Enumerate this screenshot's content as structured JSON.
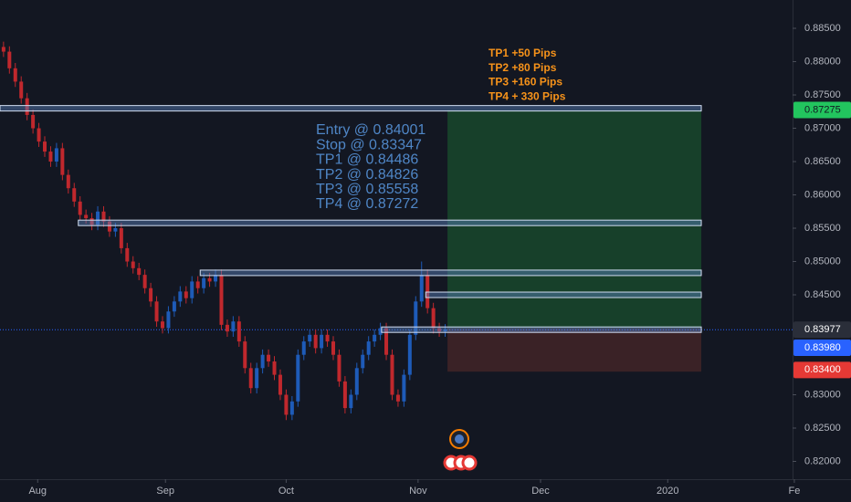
{
  "chart_data": {
    "type": "candlestick",
    "background": "#131722",
    "up_color": "#1e5bb8",
    "down_color": "#c0282d",
    "xlim": [
      -0.6,
      134
    ],
    "xticks": [
      {
        "value": 5.8,
        "label": "Aug"
      },
      {
        "value": 27.5,
        "label": "Sep"
      },
      {
        "value": 48,
        "label": "Oct"
      },
      {
        "value": 70.4,
        "label": "Nov"
      },
      {
        "value": 91.2,
        "label": "Dec"
      },
      {
        "value": 112.8,
        "label": "2020"
      },
      {
        "value": 134.3,
        "label": "Fe"
      }
    ],
    "ylim": [
      0.81733,
      0.88925
    ],
    "yticks": [
      {
        "value": 0.885,
        "label": "0.88500"
      },
      {
        "value": 0.88,
        "label": "0.88000"
      },
      {
        "value": 0.875,
        "label": "0.87500"
      },
      {
        "value": 0.87,
        "label": "0.87000"
      },
      {
        "value": 0.865,
        "label": "0.86500"
      },
      {
        "value": 0.86,
        "label": "0.86000"
      },
      {
        "value": 0.855,
        "label": "0.85500"
      },
      {
        "value": 0.85,
        "label": "0.85000"
      },
      {
        "value": 0.845,
        "label": "0.84500"
      },
      {
        "value": 0.83,
        "label": "0.83000"
      },
      {
        "value": 0.825,
        "label": "0.82500"
      },
      {
        "value": 0.82,
        "label": "0.82000"
      }
    ],
    "open": [
      0.8822,
      0.8815,
      0.879,
      0.877,
      0.8745,
      0.872,
      0.87,
      0.868,
      0.8665,
      0.865,
      0.867,
      0.863,
      0.861,
      0.859,
      0.857,
      0.8565,
      0.8555,
      0.8575,
      0.856,
      0.8545,
      0.855,
      0.852,
      0.85,
      0.849,
      0.848,
      0.846,
      0.844,
      0.841,
      0.84,
      0.8425,
      0.844,
      0.8455,
      0.8445,
      0.847,
      0.846,
      0.8475,
      0.847,
      0.848,
      0.8405,
      0.8395,
      0.841,
      0.838,
      0.834,
      0.831,
      0.834,
      0.836,
      0.835,
      0.833,
      0.83,
      0.827,
      0.829,
      0.836,
      0.838,
      0.839,
      0.837,
      0.839,
      0.838,
      0.836,
      0.832,
      0.828,
      0.83,
      0.834,
      0.836,
      0.838,
      0.839,
      0.84,
      0.836,
      0.83,
      0.829,
      0.833,
      0.839,
      0.844,
      0.848,
      0.843,
      0.84,
      0.8395
    ],
    "high": [
      0.883,
      0.8823,
      0.8798,
      0.8778,
      0.8753,
      0.8728,
      0.8708,
      0.8688,
      0.8673,
      0.8678,
      0.8678,
      0.8638,
      0.8618,
      0.8598,
      0.8578,
      0.8573,
      0.8583,
      0.8583,
      0.8568,
      0.8558,
      0.8558,
      0.8528,
      0.8508,
      0.8498,
      0.8488,
      0.8468,
      0.8448,
      0.8418,
      0.8433,
      0.8448,
      0.8463,
      0.8463,
      0.8478,
      0.8478,
      0.8483,
      0.8483,
      0.8488,
      0.8488,
      0.8413,
      0.8418,
      0.8418,
      0.8388,
      0.8348,
      0.8348,
      0.8368,
      0.8368,
      0.8358,
      0.8338,
      0.8308,
      0.8298,
      0.8368,
      0.8388,
      0.8398,
      0.8398,
      0.8398,
      0.8398,
      0.8388,
      0.8368,
      0.8328,
      0.8308,
      0.8348,
      0.8368,
      0.8388,
      0.8398,
      0.8408,
      0.8408,
      0.8368,
      0.8308,
      0.8338,
      0.8398,
      0.8448,
      0.85,
      0.8488,
      0.8438,
      0.8408,
      0.8406
    ],
    "low": [
      0.8807,
      0.8782,
      0.8762,
      0.8737,
      0.8712,
      0.8692,
      0.8672,
      0.8657,
      0.8642,
      0.8642,
      0.8622,
      0.8602,
      0.8582,
      0.8562,
      0.8557,
      0.8547,
      0.8547,
      0.8552,
      0.8537,
      0.8537,
      0.8512,
      0.8492,
      0.8482,
      0.8472,
      0.8452,
      0.8432,
      0.8402,
      0.8392,
      0.8392,
      0.8417,
      0.8432,
      0.8437,
      0.8437,
      0.8452,
      0.8452,
      0.8462,
      0.8462,
      0.8397,
      0.8387,
      0.8387,
      0.8372,
      0.8332,
      0.8302,
      0.8302,
      0.8332,
      0.8342,
      0.8322,
      0.8292,
      0.8262,
      0.8262,
      0.8282,
      0.8352,
      0.8372,
      0.8362,
      0.8362,
      0.8372,
      0.8352,
      0.8312,
      0.8272,
      0.8272,
      0.8292,
      0.8332,
      0.8352,
      0.8372,
      0.8382,
      0.8352,
      0.8292,
      0.8282,
      0.8282,
      0.8322,
      0.8382,
      0.8432,
      0.8422,
      0.8392,
      0.8387,
      0.8387
    ],
    "close": [
      0.8815,
      0.879,
      0.877,
      0.8745,
      0.872,
      0.87,
      0.868,
      0.8665,
      0.865,
      0.867,
      0.863,
      0.861,
      0.859,
      0.857,
      0.8565,
      0.8555,
      0.8575,
      0.856,
      0.8545,
      0.855,
      0.852,
      0.85,
      0.849,
      0.848,
      0.846,
      0.844,
      0.841,
      0.84,
      0.8425,
      0.844,
      0.8455,
      0.8445,
      0.847,
      0.846,
      0.8475,
      0.847,
      0.848,
      0.8405,
      0.8395,
      0.841,
      0.838,
      0.834,
      0.831,
      0.834,
      0.836,
      0.835,
      0.833,
      0.83,
      0.827,
      0.829,
      0.836,
      0.838,
      0.839,
      0.837,
      0.839,
      0.838,
      0.836,
      0.832,
      0.828,
      0.83,
      0.834,
      0.836,
      0.838,
      0.839,
      0.84,
      0.836,
      0.83,
      0.829,
      0.833,
      0.839,
      0.844,
      0.848,
      0.843,
      0.84,
      0.8395,
      0.8398
    ],
    "levels": [
      {
        "price": 0.873,
        "start": -0.6
      },
      {
        "price": 0.8558,
        "start": 12.7
      },
      {
        "price": 0.8483,
        "start": 33.4
      },
      {
        "price": 0.845,
        "start": 71.7
      },
      {
        "price": 0.83977,
        "start": 64.2
      }
    ],
    "position": {
      "entry": 0.84001,
      "stop": 0.83347,
      "target": 0.87272,
      "start": 75.4,
      "end": 118.5,
      "profit_color": "#17402a",
      "loss_color": "#3a2226"
    },
    "current_price": 0.83977,
    "targets_text": [
      "TP1 +50 Pips",
      "TP2 +80 Pips",
      "TP3 +160 Pips",
      "TP4 + 330 Pips"
    ],
    "trade_text": [
      "Entry @ 0.84001",
      "Stop @ 0.83347",
      "TP1 @ 0.84486",
      "TP2 @ 0.84826",
      "TP3 @ 0.85558",
      "TP4 @ 0.87272"
    ],
    "price_labels": [
      {
        "value": 0.87275,
        "color": "#22c55e",
        "text_color": "#131722"
      },
      {
        "value": 0.83977,
        "color": "#2a2e39",
        "text_color": "#ffffff"
      },
      {
        "value": 0.8398,
        "label": "0.83980",
        "color": "#2962ff",
        "text_color": "#ffffff"
      },
      {
        "value": 0.834,
        "label": "0.83400",
        "color": "#e53935",
        "text_color": "#ffffff"
      }
    ]
  }
}
